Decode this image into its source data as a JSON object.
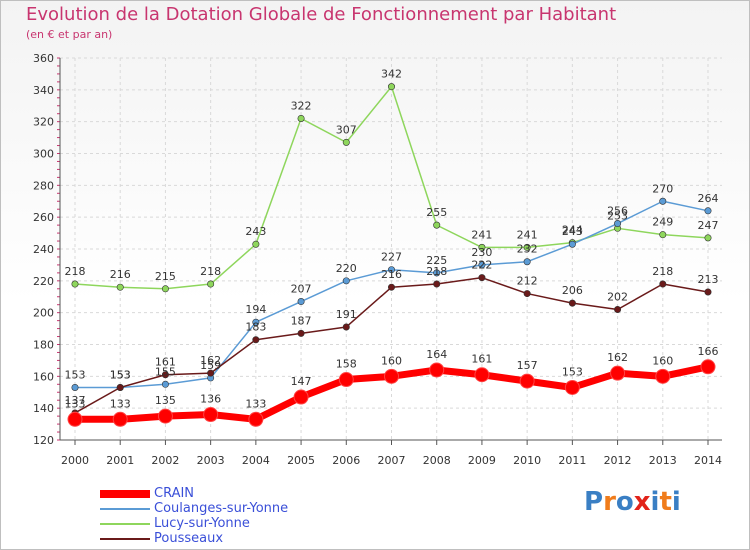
{
  "title": "Evolution de la Dotation Globale de Fonctionnement par Habitant",
  "subtitle": "(en € et par an)",
  "logo": {
    "letters": [
      "P",
      "r",
      "o",
      "x",
      "i",
      "t",
      "i"
    ],
    "colors": [
      "#3a7fc4",
      "#f07c1b",
      "#3a7fc4",
      "#e2231a",
      "#3a7fc4",
      "#f07c1b",
      "#3a7fc4"
    ]
  },
  "chart_data": {
    "type": "line",
    "x": [
      "2000",
      "2001",
      "2002",
      "2003",
      "2004",
      "2005",
      "2006",
      "2007",
      "2008",
      "2009",
      "2010",
      "2011",
      "2012",
      "2013",
      "2014"
    ],
    "ylim": [
      120,
      360
    ],
    "yticks": [
      "120",
      "140",
      "160",
      "180",
      "200",
      "220",
      "240",
      "260",
      "280",
      "300",
      "320",
      "340",
      "360"
    ],
    "grid": true,
    "legend": "bottom-left",
    "series": [
      {
        "name": "CRAIN",
        "color": "#ff0000",
        "width": 7,
        "values": [
          133,
          133,
          135,
          136,
          133,
          147,
          158,
          160,
          164,
          161,
          157,
          153,
          162,
          160,
          166
        ]
      },
      {
        "name": "Coulanges-sur-Yonne",
        "color": "#5b9bd5",
        "width": 1.5,
        "values": [
          153,
          153,
          155,
          159,
          194,
          207,
          220,
          227,
          225,
          230,
          232,
          243,
          256,
          270,
          264
        ]
      },
      {
        "name": "Lucy-sur-Yonne",
        "color": "#8ed65c",
        "width": 1.5,
        "values": [
          218,
          216,
          215,
          218,
          243,
          322,
          307,
          342,
          255,
          241,
          241,
          244,
          253,
          249,
          247
        ]
      },
      {
        "name": "Pousseaux",
        "color": "#6a1a1a",
        "width": 1.5,
        "values": [
          137,
          153,
          161,
          162,
          183,
          187,
          191,
          216,
          218,
          222,
          212,
          206,
          202,
          218,
          213
        ]
      }
    ],
    "labels": [
      {
        "series": 0,
        "values": [
          "133",
          "133",
          "135",
          "136",
          "133",
          "147",
          "158",
          "160",
          "164",
          "161",
          "157",
          "153",
          "162",
          "160",
          "166"
        ]
      },
      {
        "series": 1,
        "values": [
          "153",
          "153",
          "155",
          "159",
          "194",
          "207",
          "220",
          "227",
          "225",
          "230",
          "232",
          "243",
          "256",
          "270",
          "264"
        ]
      },
      {
        "series": 2,
        "values": [
          "218",
          "216",
          "215",
          "218",
          "243",
          "322",
          "307",
          "342",
          "255",
          "241",
          "241",
          "244",
          "253",
          "249",
          "247"
        ]
      },
      {
        "series": 3,
        "values": [
          "137",
          "153",
          "161",
          "162",
          "183",
          "187",
          "191",
          "216",
          "218",
          "222",
          "212",
          "206",
          "202",
          "218",
          "213"
        ]
      }
    ]
  }
}
